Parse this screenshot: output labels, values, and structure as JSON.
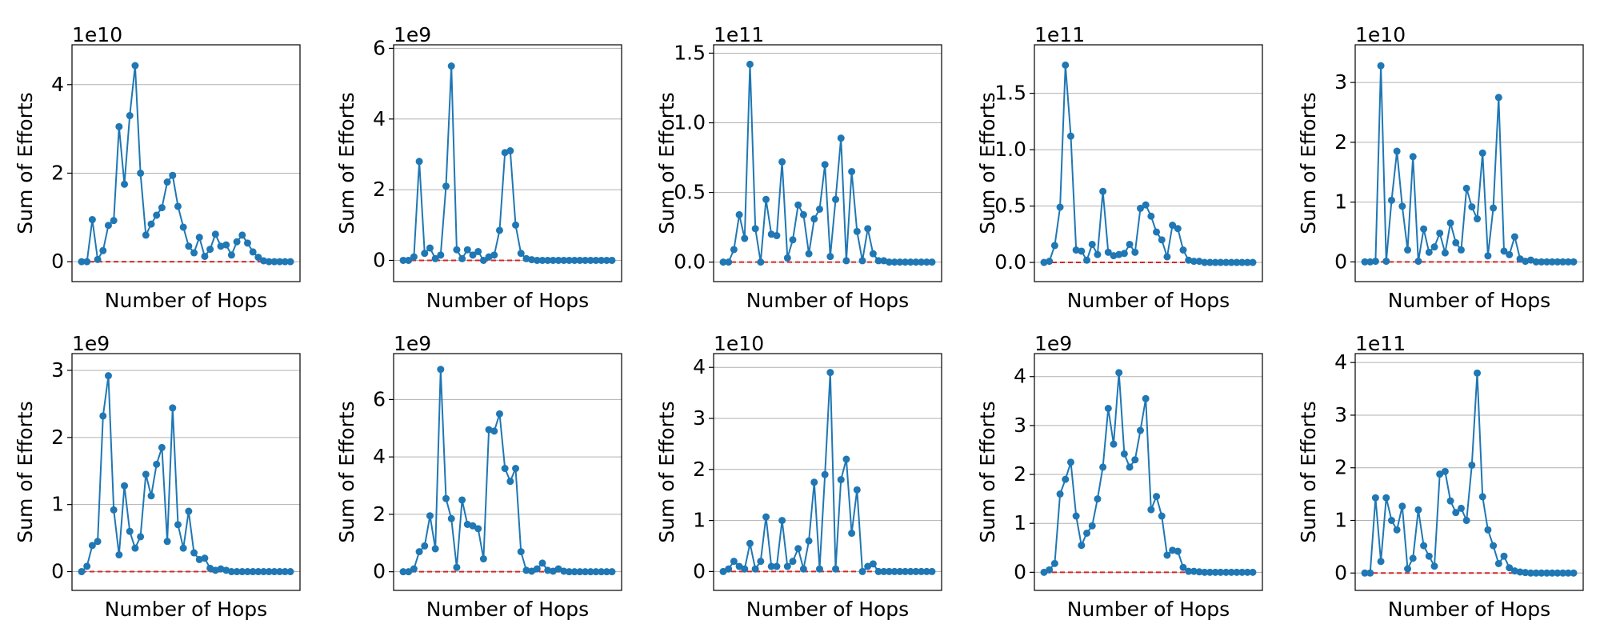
{
  "colors": {
    "series": "#1f77b4",
    "baseline": "#d62728",
    "grid": "#b0b0b0",
    "axes": "#000000"
  },
  "chart_data": [
    {
      "type": "line",
      "xlabel": "Number of Hops",
      "ylabel": "Sum of Efforts",
      "exponent_label": "1e10",
      "ylim": [
        -0.45,
        4.9
      ],
      "yticks": [
        0,
        2,
        4
      ],
      "ytick_labels": [
        "0",
        "2",
        "4"
      ],
      "grid": "horizontal",
      "baseline": 0,
      "values": [
        0,
        0,
        0.95,
        0.05,
        0.25,
        0.82,
        0.93,
        3.05,
        1.75,
        3.3,
        4.43,
        2.0,
        0.6,
        0.85,
        1.05,
        1.22,
        1.8,
        1.95,
        1.25,
        0.78,
        0.35,
        0.2,
        0.55,
        0.12,
        0.28,
        0.62,
        0.35,
        0.38,
        0.15,
        0.45,
        0.6,
        0.42,
        0.22,
        0.1,
        0.02,
        0,
        0,
        0,
        0,
        0
      ]
    },
    {
      "type": "line",
      "xlabel": "Number of Hops",
      "ylabel": "Sum of Efforts",
      "exponent_label": "1e9",
      "ylim": [
        -0.6,
        6.1
      ],
      "yticks": [
        0,
        2,
        4,
        6
      ],
      "ytick_labels": [
        "0",
        "2",
        "4",
        "6"
      ],
      "grid": "horizontal",
      "baseline": 0,
      "values": [
        0,
        0,
        0.1,
        2.8,
        0.2,
        0.35,
        0.05,
        0.15,
        2.1,
        5.5,
        0.3,
        0.05,
        0.3,
        0.15,
        0.25,
        0.0,
        0.1,
        0.15,
        0.85,
        3.05,
        3.1,
        1.0,
        0.2,
        0.05,
        0.02,
        0,
        0,
        0,
        0,
        0,
        0,
        0,
        0,
        0,
        0,
        0,
        0,
        0,
        0,
        0
      ]
    },
    {
      "type": "line",
      "xlabel": "Number of Hops",
      "ylabel": "Sum of Efforts",
      "exponent_label": "1e11",
      "ylim": [
        -0.14,
        1.56
      ],
      "yticks": [
        0,
        0.5,
        1.0,
        1.5
      ],
      "ytick_labels": [
        "0.0",
        "0.5",
        "1.0",
        "1.5"
      ],
      "grid": "horizontal",
      "baseline": 0,
      "values": [
        0,
        0,
        0.09,
        0.34,
        0.17,
        1.42,
        0.24,
        0.0,
        0.45,
        0.2,
        0.19,
        0.72,
        0.03,
        0.16,
        0.41,
        0.34,
        0.06,
        0.31,
        0.38,
        0.7,
        0.04,
        0.45,
        0.89,
        0.01,
        0.65,
        0.22,
        0.01,
        0.24,
        0.06,
        0.01,
        0.01,
        0,
        0,
        0,
        0,
        0,
        0,
        0,
        0,
        0
      ]
    },
    {
      "type": "line",
      "xlabel": "Number of Hops",
      "ylabel": "Sum of Efforts",
      "exponent_label": "1e11",
      "ylim": [
        -0.17,
        1.93
      ],
      "yticks": [
        0,
        0.5,
        1.0,
        1.5
      ],
      "ytick_labels": [
        "0.0",
        "0.5",
        "1.0",
        "1.5"
      ],
      "grid": "horizontal",
      "baseline": 0,
      "values": [
        0,
        0.01,
        0.15,
        0.49,
        1.75,
        1.12,
        0.11,
        0.1,
        0.02,
        0.16,
        0.07,
        0.63,
        0.09,
        0.06,
        0.07,
        0.08,
        0.16,
        0.09,
        0.48,
        0.51,
        0.41,
        0.27,
        0.2,
        0.05,
        0.33,
        0.3,
        0.11,
        0.02,
        0.01,
        0.01,
        0,
        0,
        0,
        0,
        0,
        0,
        0,
        0,
        0,
        0
      ]
    },
    {
      "type": "line",
      "xlabel": "Number of Hops",
      "ylabel": "Sum of Efforts",
      "exponent_label": "1e10",
      "ylim": [
        -0.33,
        3.63
      ],
      "yticks": [
        0,
        1,
        2,
        3
      ],
      "ytick_labels": [
        "0",
        "1",
        "2",
        "3"
      ],
      "grid": "horizontal",
      "baseline": 0,
      "values": [
        0,
        0,
        0.01,
        3.28,
        0.01,
        1.03,
        1.85,
        0.93,
        0.2,
        1.76,
        0.01,
        0.55,
        0.16,
        0.25,
        0.48,
        0.15,
        0.65,
        0.32,
        0.2,
        1.23,
        0.92,
        0.72,
        1.82,
        0.1,
        0.9,
        2.75,
        0.18,
        0.12,
        0.42,
        0.05,
        0.01,
        0.03,
        0,
        0,
        0,
        0,
        0,
        0,
        0,
        0
      ]
    },
    {
      "type": "line",
      "xlabel": "Number of Hops",
      "ylabel": "Sum of Efforts",
      "exponent_label": "1e9",
      "ylim": [
        -0.28,
        3.25
      ],
      "yticks": [
        0,
        1,
        2,
        3
      ],
      "ytick_labels": [
        "0",
        "1",
        "2",
        "3"
      ],
      "grid": "horizontal",
      "baseline": 0,
      "values": [
        0,
        0.08,
        0.39,
        0.45,
        2.32,
        2.92,
        0.92,
        0.25,
        1.28,
        0.6,
        0.35,
        0.52,
        1.45,
        1.13,
        1.6,
        1.85,
        0.45,
        2.44,
        0.7,
        0.35,
        0.9,
        0.28,
        0.18,
        0.2,
        0.05,
        0.02,
        0.04,
        0.02,
        0,
        0,
        0,
        0,
        0,
        0,
        0,
        0,
        0,
        0,
        0,
        0
      ]
    },
    {
      "type": "line",
      "xlabel": "Number of Hops",
      "ylabel": "Sum of Efforts",
      "exponent_label": "1e9",
      "ylim": [
        -0.65,
        7.6
      ],
      "yticks": [
        0,
        2,
        4,
        6
      ],
      "ytick_labels": [
        "0",
        "2",
        "4",
        "6"
      ],
      "grid": "horizontal",
      "baseline": 0,
      "values": [
        0,
        0,
        0.1,
        0.7,
        0.9,
        1.95,
        0.8,
        7.05,
        2.55,
        1.85,
        0.15,
        2.5,
        1.65,
        1.6,
        1.5,
        0.45,
        4.95,
        4.9,
        5.5,
        3.6,
        3.15,
        3.6,
        0.7,
        0.05,
        0.02,
        0.1,
        0.3,
        0.05,
        0.02,
        0.1,
        0.02,
        0,
        0,
        0,
        0,
        0,
        0,
        0,
        0,
        0
      ]
    },
    {
      "type": "line",
      "xlabel": "Number of Hops",
      "ylabel": "Sum of Efforts",
      "exponent_label": "1e10",
      "ylim": [
        -0.37,
        4.27
      ],
      "yticks": [
        0,
        1,
        2,
        3,
        4
      ],
      "ytick_labels": [
        "0",
        "1",
        "2",
        "3",
        "4"
      ],
      "grid": "horizontal",
      "baseline": 0,
      "values": [
        0,
        0.05,
        0.2,
        0.1,
        0.05,
        0.55,
        0.05,
        0.2,
        1.07,
        0.1,
        0.1,
        1.0,
        0.1,
        0.2,
        0.45,
        0.05,
        0.6,
        1.75,
        0.05,
        1.9,
        3.9,
        0.05,
        1.8,
        2.2,
        0.75,
        1.6,
        0.0,
        0.1,
        0.15,
        0,
        0,
        0,
        0,
        0,
        0,
        0,
        0,
        0,
        0,
        0
      ]
    },
    {
      "type": "line",
      "xlabel": "Number of Hops",
      "ylabel": "Sum of Efforts",
      "exponent_label": "1e9",
      "ylim": [
        -0.37,
        4.47
      ],
      "yticks": [
        0,
        1,
        2,
        3,
        4
      ],
      "ytick_labels": [
        "0",
        "1",
        "2",
        "3",
        "4"
      ],
      "grid": "horizontal",
      "baseline": 0,
      "values": [
        0,
        0.05,
        0.18,
        1.6,
        1.9,
        2.25,
        1.15,
        0.55,
        0.8,
        0.95,
        1.5,
        2.15,
        3.35,
        2.62,
        4.08,
        2.42,
        2.15,
        2.3,
        2.9,
        3.55,
        1.28,
        1.55,
        1.15,
        0.35,
        0.45,
        0.43,
        0.1,
        0.02,
        0.02,
        0.01,
        0,
        0,
        0,
        0,
        0,
        0,
        0,
        0,
        0,
        0
      ]
    },
    {
      "type": "line",
      "xlabel": "Number of Hops",
      "ylabel": "Sum of Efforts",
      "exponent_label": "1e11",
      "ylim": [
        -0.33,
        4.17
      ],
      "yticks": [
        0,
        1,
        2,
        3,
        4
      ],
      "ytick_labels": [
        "0",
        "1",
        "2",
        "3",
        "4"
      ],
      "grid": "horizontal",
      "baseline": 0,
      "values": [
        0,
        0,
        1.43,
        0.22,
        1.43,
        1.0,
        0.82,
        1.27,
        0.08,
        0.28,
        1.2,
        0.52,
        0.32,
        0.13,
        1.88,
        1.93,
        1.37,
        1.15,
        1.23,
        1.0,
        2.05,
        3.8,
        1.45,
        0.82,
        0.52,
        0.18,
        0.32,
        0.1,
        0.04,
        0.02,
        0.01,
        0,
        0,
        0,
        0,
        0,
        0,
        0,
        0,
        0
      ]
    }
  ]
}
